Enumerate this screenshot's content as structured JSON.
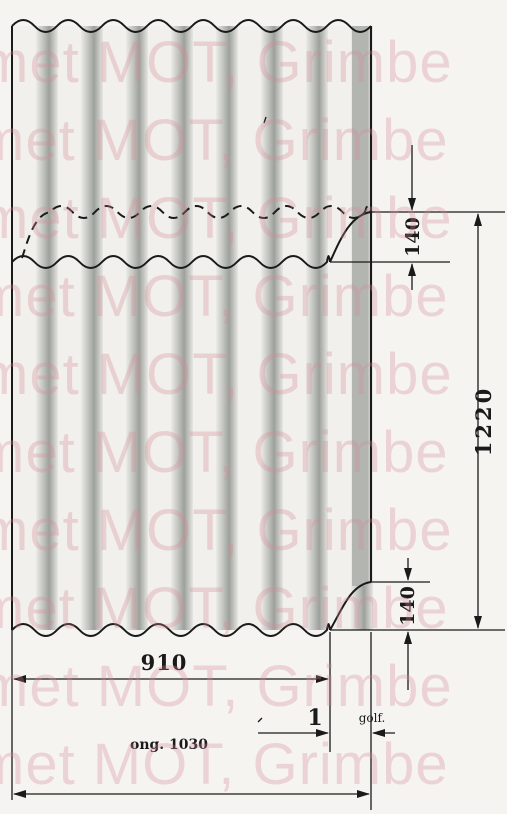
{
  "dimensions": {
    "overlap_top": "140",
    "overlap_bottom": "140",
    "height": "1220",
    "width_effective": "910",
    "corrugation": "1",
    "corrugation_unit": "golf.",
    "width_overall": "ong. 1030"
  },
  "watermark": {
    "text": "met MOT, Grimbe"
  },
  "colors": {
    "paper": "#f6f4f1",
    "ink": "#1a1a1a",
    "shade": "#a8aba6",
    "watermark": "#d58a96"
  }
}
